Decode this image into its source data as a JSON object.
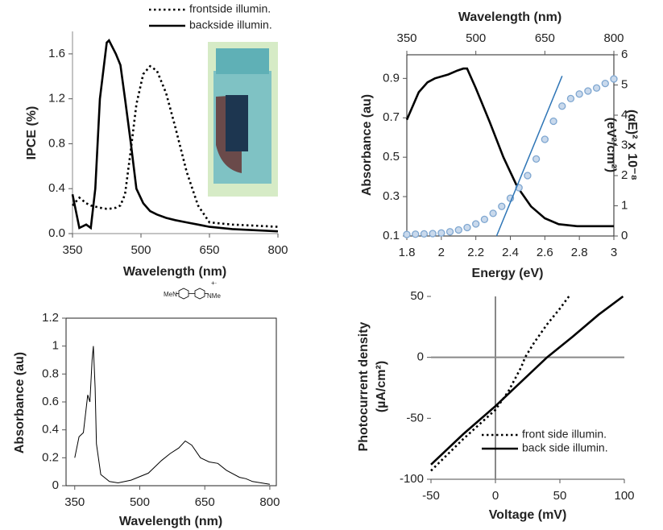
{
  "chart_data": [
    {
      "type": "line",
      "xlabel": "Wavelength (nm)",
      "ylabel": "IPCE (%)",
      "x": [
        350,
        365,
        380,
        390,
        400,
        410,
        425,
        430,
        445,
        455,
        465,
        478,
        490,
        505,
        520,
        535,
        555,
        575,
        600,
        625,
        650,
        700,
        750,
        800
      ],
      "series": [
        {
          "name": "frontside illumin.",
          "color": "#000000",
          "dash": "dotted",
          "values": [
            0.25,
            0.32,
            0.27,
            0.25,
            0.24,
            0.23,
            0.22,
            0.22,
            0.23,
            0.25,
            0.35,
            0.75,
            1.15,
            1.42,
            1.49,
            1.45,
            1.25,
            0.95,
            0.55,
            0.25,
            0.1,
            0.08,
            0.07,
            0.06
          ]
        },
        {
          "name": "backside illumin.",
          "color": "#000000",
          "dash": "solid",
          "values": [
            0.35,
            0.05,
            0.08,
            0.05,
            0.4,
            1.2,
            1.7,
            1.72,
            1.6,
            1.5,
            1.2,
            0.8,
            0.4,
            0.27,
            0.2,
            0.17,
            0.14,
            0.12,
            0.1,
            0.08,
            0.06,
            0.04,
            0.03,
            0.02
          ]
        }
      ],
      "xlim": [
        350,
        800
      ],
      "xticks": [
        350,
        500,
        650,
        800
      ],
      "ylim": [
        0,
        1.8
      ],
      "yticks": [
        {
          "value": 0,
          "label": "0.0"
        },
        0.4,
        0.8,
        1.2,
        1.6
      ]
    },
    {
      "type": "line",
      "xlabel": "Energy (eV)",
      "x2label": "Wavelength (nm)",
      "ylabel": "Absorbance (au)",
      "y2label": [
        "(αE)² x 10⁻⁸",
        "(eV²/cm²)"
      ],
      "axis_color": "#2e75b6",
      "series": [
        {
          "color": "#000000",
          "xaxis": "x2",
          "x": [
            350,
            376,
            395,
            411,
            440,
            460,
            473,
            481,
            500,
            530,
            560,
            590,
            620,
            650,
            680,
            720,
            800
          ],
          "values": [
            0.69,
            0.83,
            0.88,
            0.9,
            0.92,
            0.94,
            0.95,
            0.95,
            0.85,
            0.68,
            0.5,
            0.35,
            0.25,
            0.19,
            0.16,
            0.15,
            0.15
          ]
        },
        {
          "color": "#7ea6d0",
          "axis": "y2",
          "marker": "circle",
          "x": [
            1.8,
            1.85,
            1.9,
            1.95,
            2.0,
            2.05,
            2.1,
            2.15,
            2.2,
            2.25,
            2.3,
            2.35,
            2.4,
            2.45,
            2.5,
            2.55,
            2.6,
            2.65,
            2.7,
            2.75,
            2.8,
            2.85,
            2.9,
            2.95,
            3.0
          ],
          "values": [
            0.05,
            0.06,
            0.07,
            0.08,
            0.1,
            0.14,
            0.2,
            0.28,
            0.4,
            0.55,
            0.75,
            0.98,
            1.25,
            1.6,
            2.0,
            2.55,
            3.2,
            3.8,
            4.3,
            4.55,
            4.7,
            4.8,
            4.9,
            5.05,
            5.2
          ]
        },
        {
          "color": "#2e75b6",
          "axis": "y2",
          "x": [
            2.32,
            2.7
          ],
          "values": [
            0,
            5.3
          ]
        }
      ],
      "xlim": [
        1.8,
        3
      ],
      "xticks": [
        1.8,
        2,
        2.2,
        2.4,
        2.6,
        2.8,
        3
      ],
      "x2lim": [
        350,
        800
      ],
      "x2ticks": [
        350,
        500,
        650,
        800
      ],
      "ylim": [
        0.1,
        1.02
      ],
      "yticks": [
        0.1,
        0.3,
        0.5,
        0.7,
        0.9
      ],
      "y2lim": [
        0,
        6
      ],
      "y2ticks": [
        0,
        1,
        2,
        3,
        4,
        5,
        6
      ]
    },
    {
      "type": "line",
      "xlabel": "Wavelength (nm)",
      "ylabel": "Absorbance (au)",
      "annotations": [
        "MeN",
        "NMe",
        "+·"
      ],
      "x": [
        350,
        360,
        370,
        380,
        385,
        390,
        393,
        397,
        400,
        410,
        430,
        450,
        480,
        520,
        550,
        570,
        590,
        605,
        620,
        640,
        660,
        680,
        700,
        730,
        745,
        760,
        780,
        800
      ],
      "series": [
        {
          "color": "#000000",
          "values": [
            0.2,
            0.35,
            0.38,
            0.65,
            0.6,
            0.9,
            1.0,
            0.7,
            0.3,
            0.08,
            0.03,
            0.02,
            0.04,
            0.09,
            0.18,
            0.23,
            0.27,
            0.32,
            0.29,
            0.2,
            0.17,
            0.16,
            0.11,
            0.06,
            0.05,
            0.03,
            0.02,
            0.01
          ]
        }
      ],
      "xlim": [
        330,
        815
      ],
      "xticks": [
        350,
        500,
        650,
        800
      ],
      "ylim": [
        0,
        1.2
      ],
      "yticks": [
        0,
        0.2,
        0.4,
        0.6,
        0.8,
        1,
        1.2
      ]
    },
    {
      "type": "line",
      "xlabel": "Voltage (mV)",
      "ylabel": [
        "Photocurrent density",
        "(µA/cm²)"
      ],
      "zero_lines": true,
      "series": [
        {
          "name": "front side illumin.",
          "color": "#000000",
          "dash": "dotted",
          "x": [
            -50,
            -25,
            0,
            10,
            20,
            23,
            30,
            40,
            50,
            57
          ],
          "values": [
            -93,
            -67,
            -43,
            -28,
            -8,
            0,
            12,
            27,
            40,
            50
          ]
        },
        {
          "name": "back side illumin.",
          "color": "#000000",
          "dash": "solid",
          "x": [
            -50,
            -25,
            0,
            20,
            40,
            60,
            80,
            99
          ],
          "values": [
            -88,
            -63,
            -40,
            -20,
            0,
            17,
            35,
            50
          ]
        }
      ],
      "xlim": [
        -50,
        100
      ],
      "xticks": [
        -50,
        0,
        50,
        100
      ],
      "ylim": [
        -100,
        50
      ],
      "yticks": [
        -100,
        -50,
        0,
        50
      ]
    }
  ]
}
